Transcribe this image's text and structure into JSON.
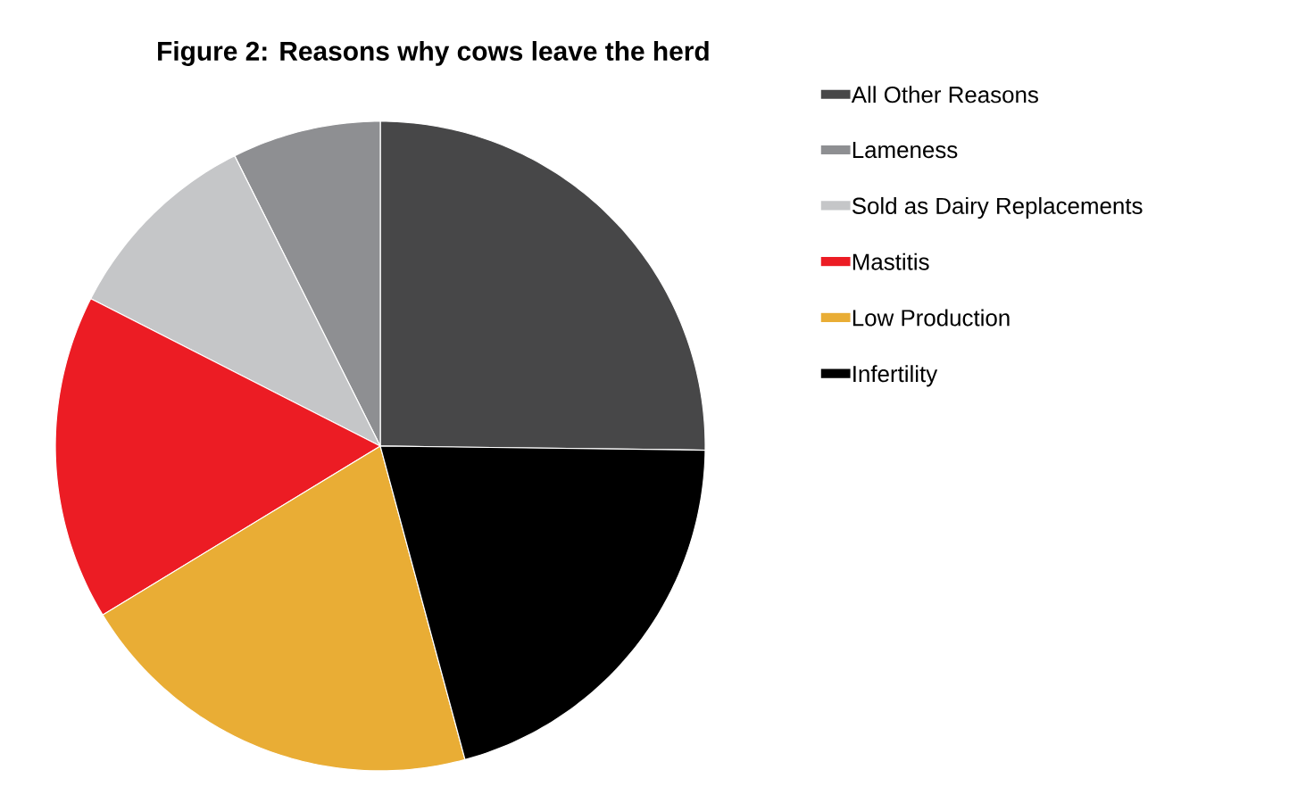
{
  "chart_data": {
    "type": "pie",
    "title": "Figure 2: Reasons why cows leave the herd",
    "categories": [
      "All Other Reasons",
      "Lameness",
      "Sold as Dairy Replacements",
      "Mastitis",
      "Low Production",
      "Infertility"
    ],
    "values": [
      25.2,
      7.4,
      10.1,
      16.2,
      20.5,
      20.6
    ],
    "colors": [
      "#474748",
      "#8e8f92",
      "#c5c6c8",
      "#ec1c24",
      "#e9ad35",
      "#000000"
    ],
    "legend": "right"
  }
}
